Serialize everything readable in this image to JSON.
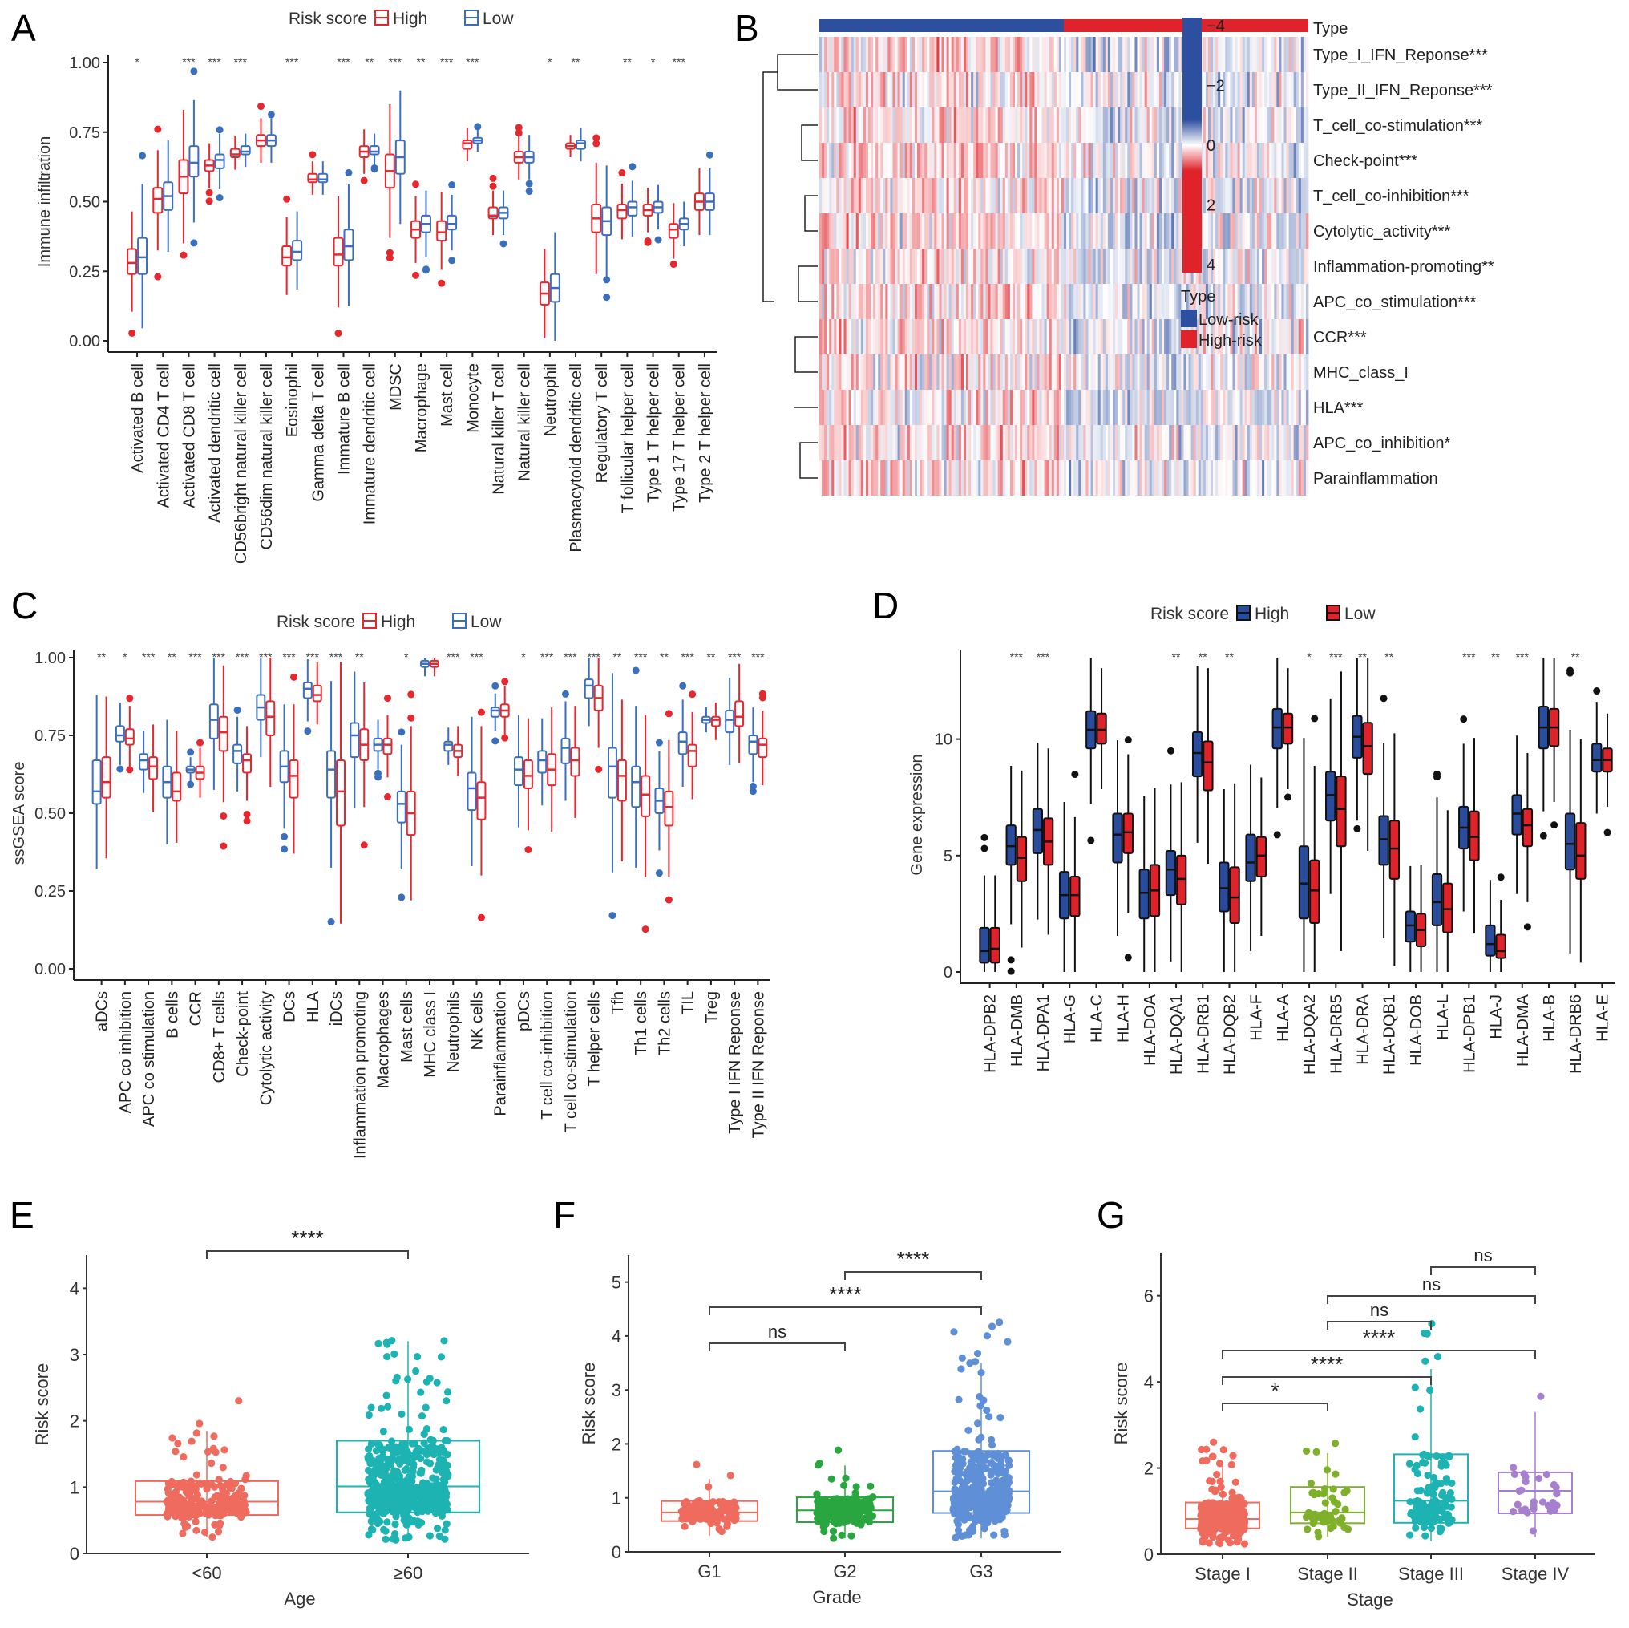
{
  "panels": {
    "A": {
      "label": "A"
    },
    "B": {
      "label": "B"
    },
    "C": {
      "label": "C"
    },
    "D": {
      "label": "D"
    },
    "E": {
      "label": "E"
    },
    "F": {
      "label": "F"
    },
    "G": {
      "label": "G"
    }
  },
  "chart_data": [
    {
      "id": "A",
      "type": "box",
      "title": "",
      "ylabel": "Immune infiltration",
      "xlabel": "",
      "ylim": [
        0,
        1.0
      ],
      "yticks": [
        "0.00",
        "0.25",
        "0.50",
        "0.75",
        "1.00"
      ],
      "legend": {
        "title": "Risk score",
        "position": "top",
        "entries": [
          {
            "name": "High",
            "color": "#e8262d",
            "style": "outline"
          },
          {
            "name": "Low",
            "color": "#3a6fbf",
            "style": "outline"
          }
        ]
      },
      "categories": [
        "Activated B cell",
        "Activated CD4 T cell",
        "Activated CD8 T cell",
        "Activated dendritic cell",
        "CD56bright natural killer cell",
        "CD56dim natural killer cell",
        "Eosinophil",
        "Gamma delta T cell",
        "Immature B cell",
        "Immature dendritic cell",
        "MDSC",
        "Macrophage",
        "Mast cell",
        "Monocyte",
        "Natural killer T cell",
        "Natural killer cell",
        "Neutrophil",
        "Plasmacytoid dendritic cell",
        "Regulatory T cell",
        "T follicular helper cell",
        "Type 1 T helper cell",
        "Type 17 T helper cell",
        "Type 2 T helper cell"
      ],
      "significance": [
        "*",
        "",
        "***",
        "***",
        "***",
        "",
        "***",
        "",
        "***",
        "**",
        "***",
        "**",
        "***",
        "***",
        "",
        "",
        "*",
        "**",
        "",
        "**",
        "*",
        "***",
        ""
      ],
      "series": [
        {
          "name": "High",
          "median": [
            0.28,
            0.51,
            0.59,
            0.63,
            0.67,
            0.72,
            0.3,
            0.58,
            0.31,
            0.68,
            0.61,
            0.4,
            0.39,
            0.71,
            0.45,
            0.66,
            0.17,
            0.7,
            0.44,
            0.47,
            0.47,
            0.4,
            0.5
          ],
          "q1": [
            0.24,
            0.46,
            0.53,
            0.61,
            0.66,
            0.7,
            0.27,
            0.57,
            0.27,
            0.66,
            0.55,
            0.37,
            0.36,
            0.69,
            0.44,
            0.64,
            0.13,
            0.69,
            0.39,
            0.44,
            0.45,
            0.37,
            0.47
          ],
          "q3": [
            0.33,
            0.55,
            0.65,
            0.65,
            0.69,
            0.74,
            0.34,
            0.6,
            0.37,
            0.7,
            0.67,
            0.43,
            0.43,
            0.72,
            0.48,
            0.68,
            0.21,
            0.71,
            0.49,
            0.49,
            0.49,
            0.42,
            0.53
          ]
        },
        {
          "name": "Low",
          "median": [
            0.3,
            0.52,
            0.64,
            0.65,
            0.68,
            0.72,
            0.32,
            0.58,
            0.34,
            0.68,
            0.66,
            0.42,
            0.42,
            0.72,
            0.46,
            0.66,
            0.19,
            0.71,
            0.43,
            0.48,
            0.48,
            0.42,
            0.5
          ],
          "q1": [
            0.24,
            0.47,
            0.59,
            0.62,
            0.67,
            0.7,
            0.29,
            0.57,
            0.29,
            0.67,
            0.6,
            0.39,
            0.4,
            0.71,
            0.44,
            0.64,
            0.14,
            0.69,
            0.38,
            0.45,
            0.46,
            0.4,
            0.47
          ],
          "q3": [
            0.37,
            0.57,
            0.7,
            0.67,
            0.7,
            0.74,
            0.36,
            0.6,
            0.4,
            0.7,
            0.72,
            0.45,
            0.45,
            0.73,
            0.48,
            0.68,
            0.24,
            0.72,
            0.48,
            0.5,
            0.5,
            0.44,
            0.53
          ]
        }
      ]
    },
    {
      "id": "B",
      "type": "heatmap",
      "rows": [
        "Type_I_IFN_Reponse***",
        "Type_II_IFN_Reponse***",
        "T_cell_co-stimulation***",
        "Check-point***",
        "T_cell_co-inhibition***",
        "Cytolytic_activity***",
        "Inflammation-promoting**",
        "APC_co_stimulation***",
        "CCR***",
        "MHC_class_I",
        "HLA***",
        "APC_co_inhibition*",
        "Parainflammation"
      ],
      "annotation": {
        "title": "Type",
        "groups": [
          {
            "name": "Low-risk",
            "color": "#2d4fa0",
            "fraction": 0.5
          },
          {
            "name": "High-risk",
            "color": "#e0232a",
            "fraction": 0.5
          }
        ]
      },
      "colorscale": {
        "min": -4,
        "max": 4,
        "ticks": [
          "-4",
          "-2",
          "0",
          "2",
          "4"
        ],
        "low_color": "#2d4fa0",
        "mid_color": "#ffffff",
        "high_color": "#e0232a"
      },
      "legend_title": "Type"
    },
    {
      "id": "C",
      "type": "box",
      "ylabel": "ssGSEA score",
      "ylim": [
        0,
        1.0
      ],
      "yticks": [
        "0.00",
        "0.25",
        "0.50",
        "0.75",
        "1.00"
      ],
      "legend": {
        "title": "Risk score",
        "position": "top",
        "entries": [
          {
            "name": "High",
            "color": "#e8262d",
            "style": "outline"
          },
          {
            "name": "Low",
            "color": "#3a6fbf",
            "style": "outline"
          }
        ]
      },
      "categories": [
        "aDCs",
        "APC co inhibition",
        "APC co stimulation",
        "B cells",
        "CCR",
        "CD8+ T cells",
        "Check-point",
        "Cytolytic activity",
        "DCs",
        "HLA",
        "iDCs",
        "Inflammation promoting",
        "Macrophages",
        "Mast cells",
        "MHC class I",
        "Neutrophils",
        "NK cells",
        "Parainflammation",
        "pDCs",
        "T cell co-inhibition",
        "T cell co-stimulation",
        "T helper cells",
        "Tfh",
        "Th1 cells",
        "Th2 cells",
        "TIL",
        "Treg",
        "Type I IFN Reponse",
        "Type II IFN Reponse"
      ],
      "significance": [
        "**",
        "*",
        "***",
        "**",
        "***",
        "***",
        "***",
        "***",
        "***",
        "***",
        "***",
        "**",
        "",
        "*",
        "",
        "***",
        "***",
        "",
        "*",
        "***",
        "***",
        "***",
        "**",
        "***",
        "**",
        "***",
        "**",
        "***",
        "***"
      ],
      "series": [
        {
          "name": "Low",
          "median": [
            0.57,
            0.75,
            0.67,
            0.6,
            0.64,
            0.8,
            0.7,
            0.84,
            0.65,
            0.9,
            0.64,
            0.75,
            0.72,
            0.53,
            0.98,
            0.72,
            0.58,
            0.83,
            0.64,
            0.67,
            0.71,
            0.91,
            0.65,
            0.6,
            0.54,
            0.73,
            0.8,
            0.8,
            0.73
          ],
          "q1": [
            0.53,
            0.73,
            0.64,
            0.55,
            0.63,
            0.74,
            0.66,
            0.8,
            0.6,
            0.87,
            0.55,
            0.68,
            0.7,
            0.47,
            0.97,
            0.7,
            0.51,
            0.81,
            0.59,
            0.63,
            0.66,
            0.87,
            0.55,
            0.52,
            0.5,
            0.69,
            0.79,
            0.76,
            0.69
          ],
          "q3": [
            0.67,
            0.78,
            0.69,
            0.65,
            0.65,
            0.85,
            0.72,
            0.88,
            0.7,
            0.92,
            0.7,
            0.79,
            0.74,
            0.57,
            0.99,
            0.73,
            0.63,
            0.84,
            0.68,
            0.7,
            0.74,
            0.93,
            0.71,
            0.65,
            0.58,
            0.76,
            0.81,
            0.83,
            0.75
          ]
        },
        {
          "name": "High",
          "median": [
            0.6,
            0.74,
            0.65,
            0.57,
            0.63,
            0.76,
            0.67,
            0.81,
            0.62,
            0.88,
            0.57,
            0.72,
            0.72,
            0.5,
            0.98,
            0.7,
            0.55,
            0.83,
            0.62,
            0.64,
            0.67,
            0.87,
            0.62,
            0.56,
            0.52,
            0.7,
            0.8,
            0.81,
            0.72
          ],
          "q1": [
            0.55,
            0.72,
            0.61,
            0.54,
            0.61,
            0.7,
            0.63,
            0.75,
            0.55,
            0.86,
            0.46,
            0.67,
            0.69,
            0.43,
            0.97,
            0.68,
            0.48,
            0.81,
            0.58,
            0.59,
            0.62,
            0.83,
            0.54,
            0.49,
            0.46,
            0.65,
            0.78,
            0.78,
            0.68
          ],
          "q3": [
            0.68,
            0.77,
            0.68,
            0.63,
            0.65,
            0.81,
            0.69,
            0.86,
            0.67,
            0.91,
            0.67,
            0.77,
            0.74,
            0.57,
            0.99,
            0.72,
            0.6,
            0.85,
            0.67,
            0.69,
            0.71,
            0.91,
            0.67,
            0.62,
            0.57,
            0.72,
            0.81,
            0.86,
            0.74
          ]
        }
      ]
    },
    {
      "id": "D",
      "type": "box",
      "ylabel": "Gene expression",
      "ylim": [
        0,
        13.5
      ],
      "yticks": [
        "0",
        "5",
        "10"
      ],
      "legend": {
        "title": "Risk score",
        "position": "top",
        "entries": [
          {
            "name": "High",
            "color": "#2a4c9c",
            "style": "filled"
          },
          {
            "name": "Low",
            "color": "#e0232a",
            "style": "filled"
          }
        ]
      },
      "categories": [
        "HLA-DPB2",
        "HLA-DMB",
        "HLA-DPA1",
        "HLA-G",
        "HLA-C",
        "HLA-H",
        "HLA-DOA",
        "HLA-DQA1",
        "HLA-DRB1",
        "HLA-DQB2",
        "HLA-F",
        "HLA-A",
        "HLA-DQA2",
        "HLA-DRB5",
        "HLA-DRA",
        "HLA-DQB1",
        "HLA-DOB",
        "HLA-L",
        "HLA-DPB1",
        "HLA-J",
        "HLA-DMA",
        "HLA-B",
        "HLA-DRB6",
        "HLA-E"
      ],
      "significance": [
        "",
        "***",
        "***",
        "",
        "",
        "",
        "",
        "**",
        "**",
        "**",
        "",
        "",
        "*",
        "***",
        "**",
        "**",
        "",
        "",
        "***",
        "**",
        "***",
        "",
        "**",
        ""
      ],
      "series": [
        {
          "name": "High",
          "median": [
            0.9,
            5.4,
            6.1,
            3.3,
            10.4,
            5.9,
            3.4,
            4.4,
            9.4,
            3.6,
            4.7,
            10.5,
            3.8,
            7.6,
            10.1,
            5.7,
            2.0,
            3.0,
            6.2,
            1.2,
            6.8,
            10.5,
            5.5,
            9.1
          ],
          "q1": [
            0.4,
            4.6,
            5.1,
            2.3,
            9.6,
            4.7,
            2.3,
            3.3,
            8.4,
            2.6,
            3.9,
            9.6,
            2.3,
            6.5,
            9.2,
            4.6,
            1.3,
            2.0,
            5.3,
            0.7,
            5.9,
            9.6,
            4.4,
            8.6
          ],
          "q3": [
            1.9,
            6.3,
            7.0,
            4.3,
            11.2,
            6.8,
            4.4,
            5.2,
            10.3,
            4.7,
            5.9,
            11.3,
            5.4,
            8.6,
            11.0,
            6.7,
            2.6,
            4.2,
            7.1,
            2.0,
            7.6,
            11.4,
            6.8,
            9.8
          ]
        },
        {
          "name": "Low",
          "median": [
            1.0,
            4.9,
            5.6,
            3.3,
            10.4,
            6.0,
            3.5,
            4.0,
            9.0,
            3.2,
            5.0,
            10.5,
            3.5,
            7.0,
            9.7,
            5.3,
            1.8,
            2.7,
            5.8,
            0.9,
            6.3,
            10.5,
            5.0,
            9.1
          ],
          "q1": [
            0.4,
            3.9,
            4.6,
            2.4,
            9.8,
            5.1,
            2.4,
            2.9,
            7.8,
            2.1,
            4.1,
            9.8,
            2.1,
            5.4,
            8.5,
            4.0,
            1.1,
            1.7,
            4.8,
            0.6,
            5.4,
            9.7,
            4.0,
            8.6
          ],
          "q3": [
            1.9,
            5.8,
            6.6,
            4.1,
            11.1,
            6.8,
            4.6,
            5.0,
            9.9,
            4.5,
            5.8,
            11.1,
            4.8,
            8.4,
            10.7,
            6.5,
            2.5,
            3.8,
            6.9,
            1.6,
            7.0,
            11.3,
            6.4,
            9.6
          ]
        }
      ]
    },
    {
      "id": "E",
      "type": "box+scatter",
      "xlabel": "Age",
      "ylabel": "Risk score",
      "ylim": [
        0,
        4.5
      ],
      "yticks": [
        "0",
        "1",
        "2",
        "3",
        "4"
      ],
      "categories": [
        "<60",
        "≥60"
      ],
      "colors": [
        "#ee6b5e",
        "#1eb3b3"
      ],
      "boxes": [
        {
          "q1": 0.58,
          "median": 0.78,
          "q3": 1.09,
          "whisk_lo": 0.24,
          "whisk_hi": 1.85
        },
        {
          "q1": 0.62,
          "median": 1.01,
          "q3": 1.7,
          "whisk_lo": 0.2,
          "whisk_hi": 3.2
        }
      ],
      "n_points": [
        220,
        520
      ],
      "comparisons": [
        {
          "from": "<60",
          "to": "≥60",
          "label": "****"
        }
      ]
    },
    {
      "id": "F",
      "type": "box+scatter",
      "xlabel": "Grade",
      "ylabel": "Risk score",
      "ylim": [
        0,
        5.5
      ],
      "yticks": [
        "0",
        "1",
        "2",
        "3",
        "4",
        "5"
      ],
      "categories": [
        "G1",
        "G2",
        "G3"
      ],
      "colors": [
        "#ee6b5e",
        "#2aa640",
        "#5f8fd6"
      ],
      "boxes": [
        {
          "q1": 0.57,
          "median": 0.73,
          "q3": 0.94,
          "whisk_lo": 0.3,
          "whisk_hi": 1.35
        },
        {
          "q1": 0.55,
          "median": 0.77,
          "q3": 1.01,
          "whisk_lo": 0.25,
          "whisk_hi": 1.6
        },
        {
          "q1": 0.72,
          "median": 1.12,
          "q3": 1.87,
          "whisk_lo": 0.25,
          "whisk_hi": 3.5
        }
      ],
      "n_points": [
        120,
        200,
        420
      ],
      "comparisons": [
        {
          "from": "G1",
          "to": "G2",
          "label": "ns"
        },
        {
          "from": "G1",
          "to": "G3",
          "label": "****"
        },
        {
          "from": "G2",
          "to": "G3",
          "label": "****"
        }
      ]
    },
    {
      "id": "G",
      "type": "box+scatter",
      "xlabel": "Stage",
      "ylabel": "Risk score",
      "ylim": [
        0,
        7
      ],
      "yticks": [
        "0",
        "2",
        "4",
        "6"
      ],
      "categories": [
        "Stage I",
        "Stage II",
        "Stage III",
        "Stage IV"
      ],
      "colors": [
        "#ee6b5e",
        "#7fb02a",
        "#1eb3b3",
        "#a67fcf"
      ],
      "boxes": [
        {
          "q1": 0.6,
          "median": 0.82,
          "q3": 1.2,
          "whisk_lo": 0.22,
          "whisk_hi": 2.1
        },
        {
          "q1": 0.72,
          "median": 0.97,
          "q3": 1.56,
          "whisk_lo": 0.4,
          "whisk_hi": 2.35
        },
        {
          "q1": 0.73,
          "median": 1.24,
          "q3": 2.32,
          "whisk_lo": 0.3,
          "whisk_hi": 4.3
        },
        {
          "q1": 0.95,
          "median": 1.47,
          "q3": 1.9,
          "whisk_lo": 0.4,
          "whisk_hi": 3.3
        }
      ],
      "n_points": [
        420,
        60,
        130,
        30
      ],
      "comparisons": [
        {
          "from": "Stage I",
          "to": "Stage II",
          "label": "*"
        },
        {
          "from": "Stage I",
          "to": "Stage III",
          "label": "****"
        },
        {
          "from": "Stage I",
          "to": "Stage IV",
          "label": "****"
        },
        {
          "from": "Stage II",
          "to": "Stage III",
          "label": "ns"
        },
        {
          "from": "Stage II",
          "to": "Stage IV",
          "label": "ns"
        },
        {
          "from": "Stage III",
          "to": "Stage IV",
          "label": "ns"
        }
      ]
    }
  ]
}
